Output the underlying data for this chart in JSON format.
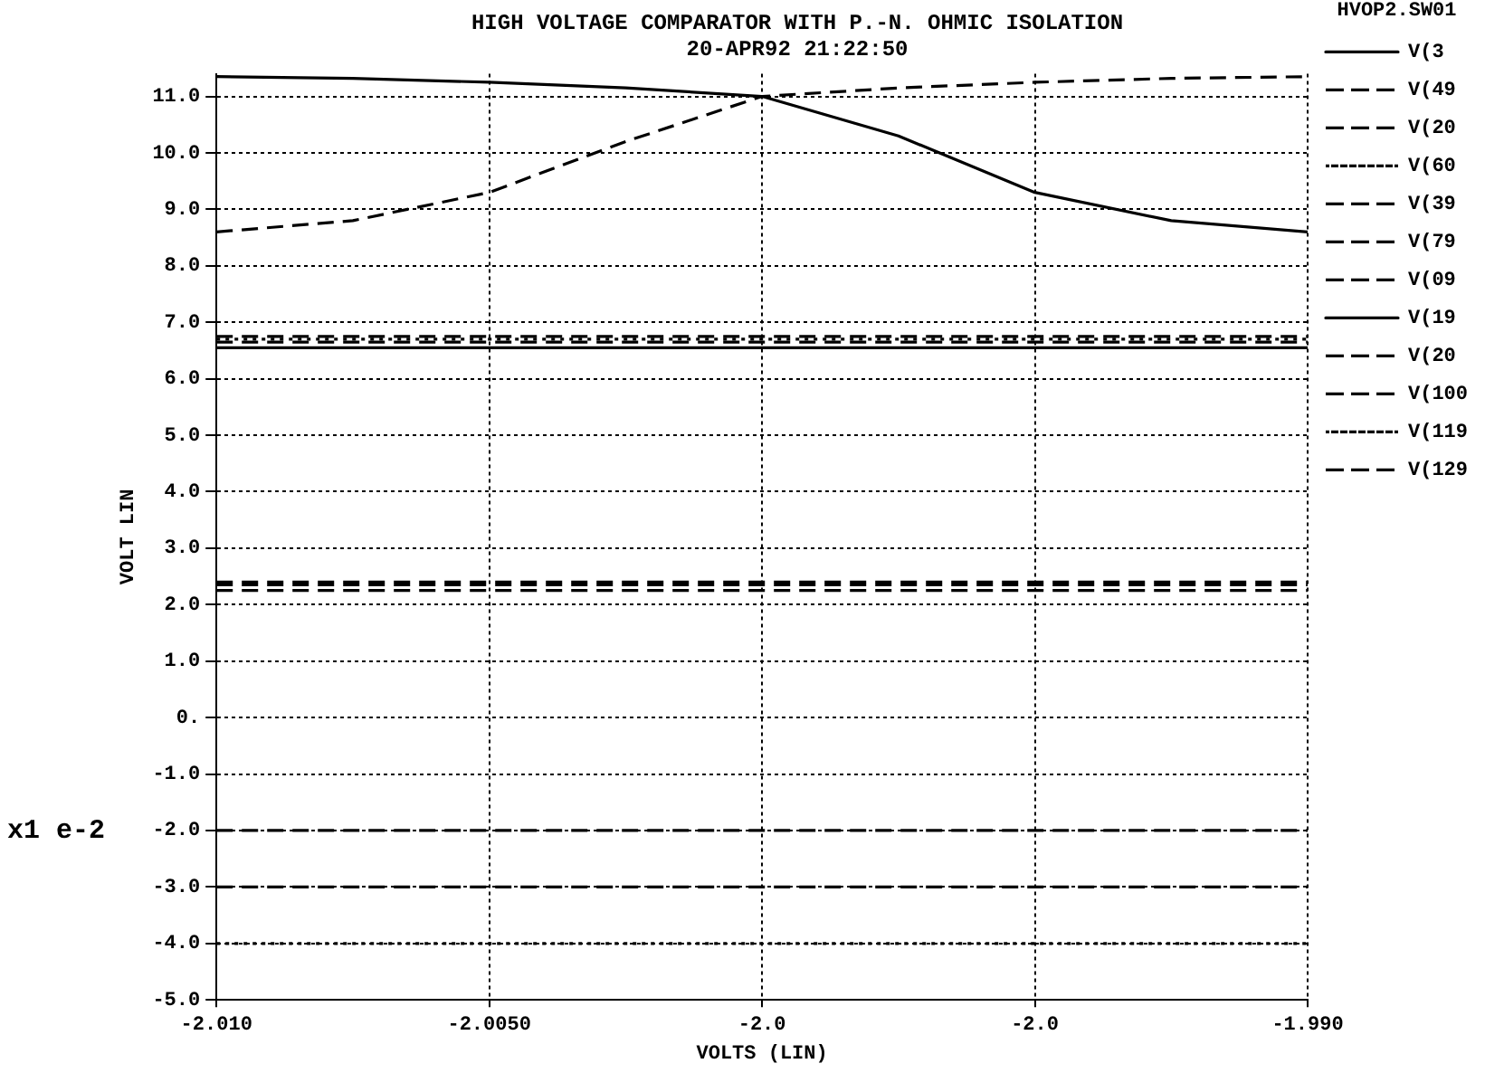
{
  "chart_data": {
    "type": "line",
    "title": "HIGH VOLTAGE COMPARATOR WITH P.-N. OHMIC ISOLATION",
    "subtitle": "20-APR92 21:22:50",
    "xlabel": "VOLTS (LIN)",
    "ylabel": "VOLT LIN",
    "legend_title": "HVOP2.SW01",
    "annotations": [
      "x1 e-2"
    ],
    "xlim": [
      -2.01,
      -1.99
    ],
    "xticks": [
      {
        "value": -2.01,
        "label": "-2.010"
      },
      {
        "value": -2.005,
        "label": "-2.0050"
      },
      {
        "value": -2.0,
        "label": "-2.0"
      },
      {
        "value": -1.995,
        "label": "-2.0"
      },
      {
        "value": -1.99,
        "label": "-1.990"
      }
    ],
    "ylim": [
      -5,
      11.4
    ],
    "yticks": [
      {
        "value": 11,
        "label": "11.0"
      },
      {
        "value": 10,
        "label": "10.0"
      },
      {
        "value": 9,
        "label": "9.0"
      },
      {
        "value": 8,
        "label": "8.0"
      },
      {
        "value": 7,
        "label": "7.0"
      },
      {
        "value": 6,
        "label": "6.0"
      },
      {
        "value": 5,
        "label": "5.0"
      },
      {
        "value": 4,
        "label": "4.0"
      },
      {
        "value": 3,
        "label": "3.0"
      },
      {
        "value": 2,
        "label": "2.0"
      },
      {
        "value": 1,
        "label": "1.0"
      },
      {
        "value": 0,
        "label": "0."
      },
      {
        "value": -1,
        "label": "-1.0"
      },
      {
        "value": -2,
        "label": "-2.0"
      },
      {
        "value": -3,
        "label": "-3.0"
      },
      {
        "value": -4,
        "label": "-4.0"
      },
      {
        "value": -5,
        "label": "-5.0"
      }
    ],
    "grid": true,
    "legend": "right",
    "series": [
      {
        "name": "V(3",
        "color": "#000000",
        "line_style": "solid",
        "x": [
          -2.01,
          -2.0075,
          -2.005,
          -2.0025,
          -2.0,
          -1.9975,
          -1.995,
          -1.9925,
          -1.99
        ],
        "values": [
          11.35,
          11.32,
          11.25,
          11.15,
          11.0,
          10.3,
          9.3,
          8.8,
          8.6
        ]
      },
      {
        "name": "V(49",
        "color": "#000000",
        "line_style": "dashed",
        "x": [
          -2.01,
          -2.0075,
          -2.005,
          -2.0025,
          -2.0,
          -1.9975,
          -1.995,
          -1.9925,
          -1.99
        ],
        "values": [
          8.6,
          8.8,
          9.3,
          10.2,
          11.0,
          11.15,
          11.25,
          11.32,
          11.35
        ]
      },
      {
        "name": "V(20",
        "color": "#000000",
        "line_style": "dashed",
        "x": [
          -2.01,
          -1.99
        ],
        "values": [
          6.75,
          6.75
        ]
      },
      {
        "name": "V(60",
        "color": "#000000",
        "line_style": "dotted",
        "x": [
          -2.01,
          -1.99
        ],
        "values": [
          6.7,
          6.7
        ]
      },
      {
        "name": "V(39",
        "color": "#000000",
        "line_style": "dashed",
        "x": [
          -2.01,
          -1.99
        ],
        "values": [
          6.65,
          6.65
        ]
      },
      {
        "name": "V(79",
        "color": "#000000",
        "line_style": "dashed",
        "x": [
          -2.01,
          -1.99
        ],
        "values": [
          2.4,
          2.4
        ]
      },
      {
        "name": "V(09",
        "color": "#000000",
        "line_style": "dashed",
        "x": [
          -2.01,
          -1.99
        ],
        "values": [
          2.25,
          2.25
        ]
      },
      {
        "name": "V(19",
        "color": "#000000",
        "line_style": "solid",
        "x": [
          -2.01,
          -1.99
        ],
        "values": [
          6.55,
          6.55
        ]
      },
      {
        "name": "V(20",
        "color": "#000000",
        "line_style": "dashed",
        "x": [
          -2.01,
          -1.99
        ],
        "values": [
          2.35,
          2.35
        ]
      },
      {
        "name": "V(100",
        "color": "#000000",
        "line_style": "dashed",
        "x": [
          -2.01,
          -1.99
        ],
        "values": [
          -2.0,
          -2.0
        ]
      },
      {
        "name": "V(119",
        "color": "#000000",
        "line_style": "dotted",
        "x": [
          -2.01,
          -1.99
        ],
        "values": [
          -4.0,
          -4.0
        ]
      },
      {
        "name": "V(129",
        "color": "#000000",
        "line_style": "dashed",
        "x": [
          -2.01,
          -1.99
        ],
        "values": [
          -3.0,
          -3.0
        ]
      }
    ]
  }
}
